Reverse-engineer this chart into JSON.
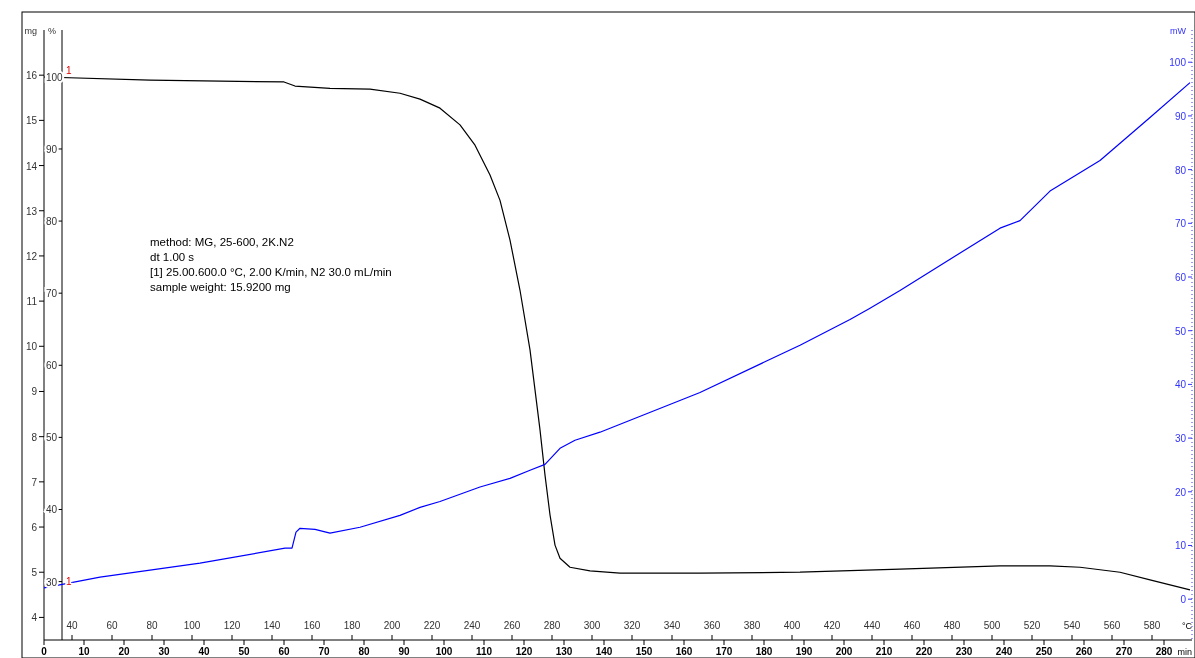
{
  "chart_data": {
    "type": "line",
    "xlabel": "min",
    "x2label": "°C",
    "ylabel": "mg",
    "y2label": "mW",
    "y3label": "%",
    "xlim": [
      0,
      287
    ],
    "xticks": [
      0,
      10,
      20,
      30,
      40,
      50,
      60,
      70,
      80,
      90,
      100,
      110,
      120,
      130,
      140,
      150,
      160,
      170,
      180,
      190,
      200,
      210,
      220,
      230,
      240,
      250,
      260,
      270,
      280
    ],
    "x2lim": [
      26,
      600
    ],
    "x2ticks": [
      40,
      60,
      80,
      100,
      120,
      140,
      160,
      180,
      200,
      220,
      240,
      260,
      280,
      300,
      320,
      340,
      360,
      380,
      400,
      420,
      440,
      460,
      480,
      500,
      520,
      540,
      560,
      580
    ],
    "ylim": [
      3.5,
      17
    ],
    "yticks": [
      4,
      5,
      6,
      7,
      8,
      9,
      10,
      11,
      12,
      13,
      14,
      15,
      16
    ],
    "y2lim": [
      -7.6,
      106
    ],
    "y2ticks": [
      0,
      10,
      20,
      30,
      40,
      50,
      60,
      70,
      80,
      90,
      100
    ],
    "y3lim": [
      21.9,
      106.5
    ],
    "y3ticks": [
      30,
      40,
      50,
      60,
      70,
      80,
      90,
      100
    ],
    "grid": false,
    "series": [
      {
        "color": "#000000",
        "x": [
          0,
          26.5,
          60,
          62.75,
          71.5,
          81.5,
          89,
          94,
          99,
          104,
          107.75,
          111.5,
          114,
          116.5,
          119,
          121.5,
          124,
          125.25,
          126.5,
          127.75,
          129,
          131.5,
          136.5,
          144,
          164,
          189,
          214,
          239,
          251.5,
          259,
          269,
          276.5,
          281.5,
          286.5
        ],
        "values": [
          15.96,
          15.89,
          15.85,
          15.76,
          15.71,
          15.69,
          15.6,
          15.47,
          15.27,
          14.9,
          14.45,
          13.79,
          13.23,
          12.35,
          11.24,
          9.92,
          8.15,
          7.15,
          6.27,
          5.6,
          5.31,
          5.11,
          5.03,
          4.98,
          4.98,
          5.0,
          5.07,
          5.14,
          5.14,
          5.11,
          5.0,
          4.83,
          4.72,
          4.61
        ]
      },
      {
        "color": "#0000ff",
        "axis": "y2",
        "x": [
          0,
          14,
          39,
          60.25,
          62,
          63,
          64,
          67.75,
          71.5,
          79,
          89,
          94,
          99,
          109,
          116.5,
          121.5,
          125.25,
          129,
          132.75,
          139,
          164,
          189,
          201.5,
          206.5,
          214,
          239,
          244,
          251.5,
          264,
          276.5,
          286.5
        ],
        "values": [
          2.1,
          4.1,
          6.7,
          9.5,
          9.5,
          12.5,
          13.2,
          13.0,
          12.3,
          13.4,
          15.6,
          17.1,
          18.2,
          20.9,
          22.5,
          24.0,
          25.1,
          28.1,
          29.6,
          31.1,
          38.5,
          47.3,
          52.1,
          54.2,
          57.5,
          69.1,
          70.5,
          76.0,
          81.7,
          89.7,
          96.2
        ]
      }
    ],
    "annotations": [
      "method: MG, 25-600, 2K.N2",
      "dt 1.00 s",
      "[1] 25.00.600.0 °C, 2.00 K/min, N2 30.0 mL/min",
      "sample weight: 15.9200 mg",
      {
        "text": "1",
        "x": 0,
        "y": 15.96
      },
      {
        "text": "1",
        "x": 0,
        "y": 4.65
      }
    ]
  }
}
